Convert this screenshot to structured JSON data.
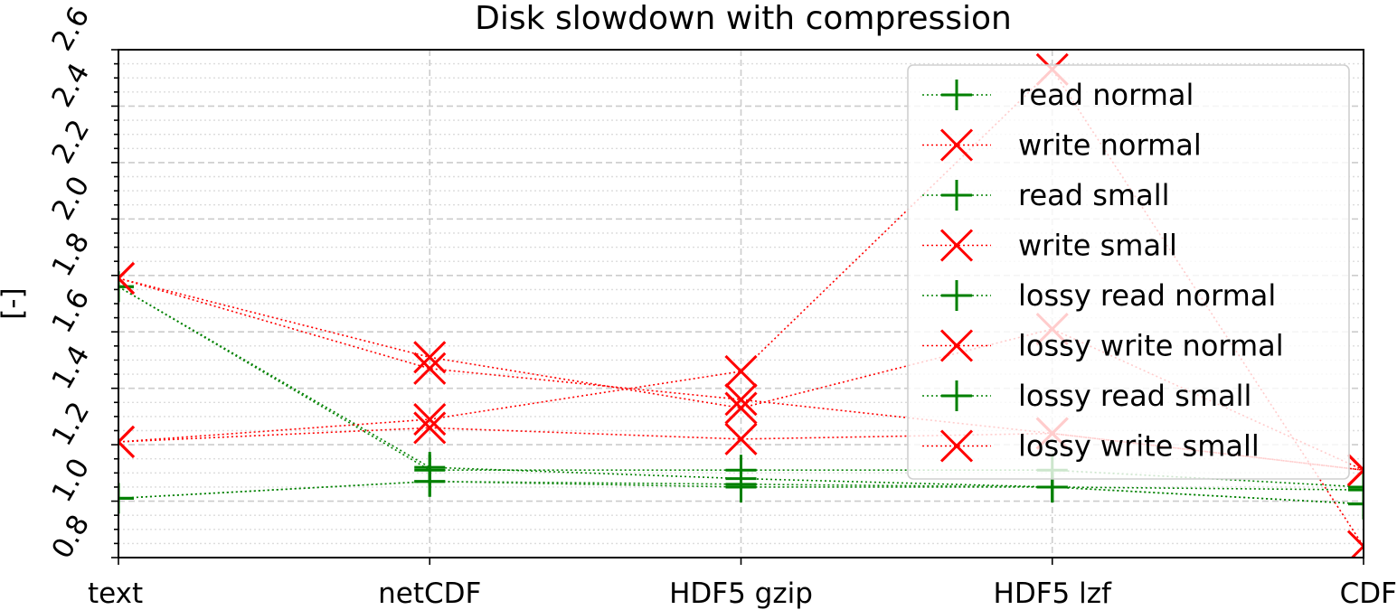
{
  "chart_data": {
    "type": "line",
    "title": "Disk slowdown with compression",
    "xlabel": "",
    "ylabel": "[-]",
    "categories": [
      "text",
      "netCDF",
      "HDF5 gzip",
      "HDF5 lzf",
      "CDF"
    ],
    "ylim": [
      0.8,
      2.6
    ],
    "yticks": [
      "0.8",
      "1.0",
      "1.2",
      "1.4",
      "1.6",
      "1.8",
      "2.0",
      "2.2",
      "2.4",
      "2.6"
    ],
    "grid": true,
    "legend_position": "top-right",
    "series": [
      {
        "name": "read normal",
        "color": "#008000",
        "marker": "plus",
        "values": [
          1.76,
          1.12,
          1.08,
          1.05,
          1.04
        ]
      },
      {
        "name": "write normal",
        "color": "#ff0000",
        "marker": "x",
        "values": [
          1.79,
          1.47,
          1.36,
          1.24,
          1.11
        ]
      },
      {
        "name": "read small",
        "color": "#008000",
        "marker": "plus",
        "values": [
          1.01,
          1.07,
          1.06,
          1.05,
          0.99
        ]
      },
      {
        "name": "write small",
        "color": "#ff0000",
        "marker": "x",
        "values": [
          1.21,
          1.26,
          1.22,
          1.24,
          1.11
        ]
      },
      {
        "name": "lossy read normal",
        "color": "#008000",
        "marker": "plus",
        "values": [
          1.76,
          1.11,
          1.11,
          1.11,
          1.05
        ]
      },
      {
        "name": "lossy write normal",
        "color": "#ff0000",
        "marker": "x",
        "values": [
          1.79,
          1.51,
          1.33,
          1.61,
          1.11
        ]
      },
      {
        "name": "lossy read small",
        "color": "#008000",
        "marker": "plus",
        "values": [
          1.01,
          1.07,
          1.05,
          1.05,
          0.99
        ]
      },
      {
        "name": "lossy write small",
        "color": "#ff0000",
        "marker": "x",
        "values": [
          1.21,
          1.29,
          1.46,
          2.53,
          0.84
        ]
      }
    ]
  }
}
